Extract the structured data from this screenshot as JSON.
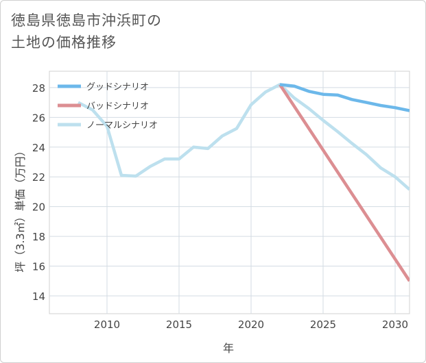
{
  "title_lines": [
    "徳島県徳島市沖浜町の",
    "土地の価格推移"
  ],
  "chart_data": {
    "type": "line",
    "title": "徳島県徳島市沖浜町の土地の価格推移",
    "xlabel": "年",
    "ylabel": "坪（3.3㎡）単価（万円）",
    "xlim": [
      2006,
      2031
    ],
    "ylim": [
      12.8,
      29.1
    ],
    "xticks": [
      2010,
      2015,
      2020,
      2025,
      2030
    ],
    "yticks": [
      14,
      16,
      18,
      20,
      22,
      24,
      26,
      28
    ],
    "legend_position": "top-left",
    "series": [
      {
        "name": "グッドシナリオ",
        "color": "#6cb8ea",
        "x": [
          2022,
          2023,
          2024,
          2025,
          2026,
          2027,
          2028,
          2029,
          2030,
          2031
        ],
        "values": [
          28.2,
          28.1,
          27.75,
          27.55,
          27.5,
          27.2,
          27.0,
          26.8,
          26.65,
          26.45
        ]
      },
      {
        "name": "バッドシナリオ",
        "color": "#dc8e92",
        "x": [
          2022,
          2031
        ],
        "values": [
          28.2,
          15.0
        ]
      },
      {
        "name": "ノーマルシナリオ",
        "color": "#bde0ee",
        "x": [
          2008,
          2009,
          2010,
          2011,
          2012,
          2013,
          2014,
          2015,
          2016,
          2017,
          2018,
          2019,
          2020,
          2021,
          2022,
          2023,
          2024,
          2025,
          2026,
          2027,
          2028,
          2029,
          2030,
          2031
        ],
        "values": [
          27.0,
          26.5,
          25.4,
          22.1,
          22.05,
          22.7,
          23.2,
          23.2,
          24.0,
          23.9,
          24.75,
          25.25,
          26.85,
          27.7,
          28.2,
          27.3,
          26.6,
          25.8,
          25.05,
          24.25,
          23.5,
          22.6,
          22.0,
          21.15
        ]
      }
    ]
  }
}
